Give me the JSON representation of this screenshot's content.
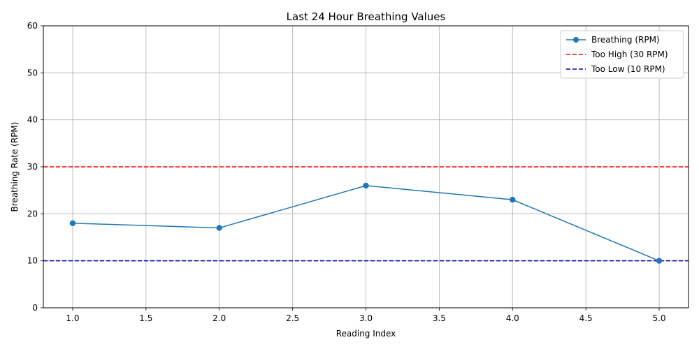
{
  "chart_data": {
    "type": "line",
    "title": "Last 24 Hour Breathing Values",
    "xlabel": "Reading Index",
    "ylabel": "Breathing Rate (RPM)",
    "xlim": [
      0.8,
      5.2
    ],
    "ylim": [
      0,
      60
    ],
    "xticks": [
      1.0,
      1.5,
      2.0,
      2.5,
      3.0,
      3.5,
      4.0,
      4.5,
      5.0
    ],
    "xtick_labels": [
      "1.0",
      "1.5",
      "2.0",
      "2.5",
      "3.0",
      "3.5",
      "4.0",
      "4.5",
      "5.0"
    ],
    "yticks": [
      0,
      10,
      20,
      30,
      40,
      50,
      60
    ],
    "ytick_labels": [
      "0",
      "10",
      "20",
      "30",
      "40",
      "50",
      "60"
    ],
    "grid": true,
    "legend_position": "top-right",
    "series": [
      {
        "name": "Breathing (RPM)",
        "color": "#1f77b4",
        "marker": "circle",
        "x": [
          1,
          2,
          3,
          4,
          5
        ],
        "y": [
          18,
          17,
          26,
          23,
          10
        ]
      }
    ],
    "thresholds": [
      {
        "name": "Too High (30 RPM)",
        "value": 30,
        "color": "#ff0000",
        "style": "dashed"
      },
      {
        "name": "Too Low (10 RPM)",
        "value": 10,
        "color": "#0000aa",
        "style": "dashed"
      }
    ]
  }
}
